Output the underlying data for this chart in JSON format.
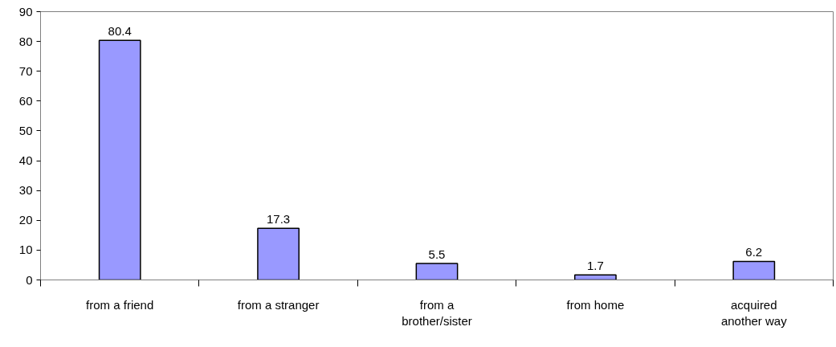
{
  "chart_data": {
    "type": "bar",
    "categories": [
      "from a friend",
      "from a stranger",
      "from a brother/sister",
      "from home",
      "acquired another way"
    ],
    "values": [
      80.4,
      17.3,
      5.5,
      1.7,
      6.2
    ],
    "color": "#9999ff",
    "ylim": [
      0,
      90
    ],
    "yticks": [
      0,
      10,
      20,
      30,
      40,
      50,
      60,
      70,
      80,
      90
    ],
    "data_labels": true,
    "grid": false
  }
}
